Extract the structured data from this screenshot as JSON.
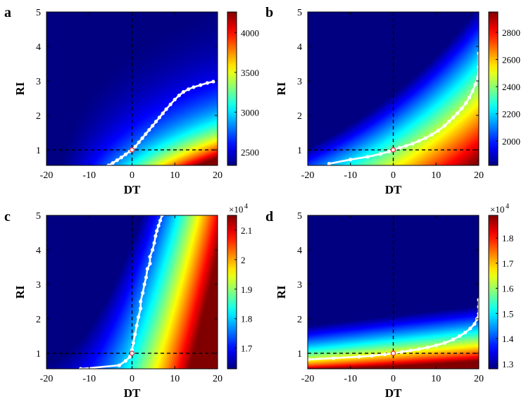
{
  "figure": {
    "colormap": "jet",
    "background": "#ffffff",
    "path_color": "#ffffff",
    "marker_color": "#ff2a2a",
    "dash_color": "#000000"
  },
  "chart_data": [
    {
      "panel_label": "a",
      "type": "heatmap",
      "xlabel": "DT",
      "ylabel": "RI",
      "xlim": [
        -20,
        20
      ],
      "ylim": [
        0.55,
        5
      ],
      "xticks": [
        "-20",
        "-10",
        "0",
        "10",
        "20"
      ],
      "yticks": [
        "1",
        "2",
        "3",
        "4",
        "5"
      ],
      "colorbar": {
        "range": [
          2330,
          4260
        ],
        "ticks": [
          "2500",
          "3000",
          "3500",
          "4000"
        ],
        "tick_values": [
          2500,
          3000,
          3500,
          4000
        ],
        "multiplier": ""
      },
      "reference_point": {
        "x": 0,
        "y": 1
      },
      "optimal_path": {
        "x": [
          -5.5,
          -4.5,
          -3.5,
          -2.5,
          -1.5,
          -0.5,
          0,
          0.8,
          1.6,
          2.4,
          3.2,
          4.0,
          4.8,
          5.6,
          6.4,
          7.2,
          8.0,
          9.0,
          10.0,
          11.0,
          12.0,
          13.2,
          14.4,
          16.0,
          17.6,
          19.0
        ],
        "y": [
          0.55,
          0.62,
          0.7,
          0.78,
          0.87,
          0.96,
          1.0,
          1.1,
          1.22,
          1.34,
          1.46,
          1.58,
          1.7,
          1.82,
          1.94,
          2.06,
          2.18,
          2.32,
          2.46,
          2.58,
          2.68,
          2.76,
          2.82,
          2.88,
          2.94,
          2.98
        ]
      }
    },
    {
      "panel_label": "b",
      "type": "heatmap",
      "xlabel": "DT",
      "ylabel": "RI",
      "xlim": [
        -20,
        20
      ],
      "ylim": [
        0.55,
        5
      ],
      "xticks": [
        "-20",
        "-10",
        "0",
        "10",
        "20"
      ],
      "yticks": [
        "1",
        "2",
        "3",
        "4",
        "5"
      ],
      "colorbar": {
        "range": [
          1820,
          2950
        ],
        "ticks": [
          "2000",
          "2200",
          "2400",
          "2600",
          "2800"
        ],
        "tick_values": [
          2000,
          2200,
          2400,
          2600,
          2800
        ],
        "multiplier": ""
      },
      "reference_point": {
        "x": 0,
        "y": 1
      },
      "optimal_path": {
        "x": [
          -15,
          -10,
          -6,
          -3,
          -1,
          0,
          1.5,
          3,
          4.5,
          6,
          7.5,
          9,
          10.5,
          12,
          13,
          14,
          15,
          16,
          17,
          17.8,
          18.5,
          19.2,
          19.8,
          20,
          20
        ],
        "y": [
          0.6,
          0.72,
          0.8,
          0.88,
          0.95,
          1.0,
          1.06,
          1.12,
          1.18,
          1.26,
          1.34,
          1.44,
          1.56,
          1.7,
          1.82,
          1.94,
          2.06,
          2.2,
          2.36,
          2.52,
          2.7,
          2.9,
          3.1,
          3.4,
          3.8
        ]
      }
    },
    {
      "panel_label": "c",
      "type": "heatmap",
      "xlabel": "DT",
      "ylabel": "RI",
      "xlim": [
        -20,
        20
      ],
      "ylim": [
        0.55,
        5
      ],
      "xticks": [
        "-20",
        "-10",
        "0",
        "10",
        "20"
      ],
      "yticks": [
        "1",
        "2",
        "3",
        "4",
        "5"
      ],
      "colorbar": {
        "range": [
          16300,
          21500
        ],
        "ticks": [
          "1.7",
          "1.8",
          "1.9",
          "2",
          "2.1"
        ],
        "tick_values": [
          17000,
          18000,
          19000,
          20000,
          21000
        ],
        "multiplier": "×10",
        "exponent": "4"
      },
      "reference_point": {
        "x": 0,
        "y": 1
      },
      "optimal_path": {
        "x": [
          -12,
          -3,
          -1.5,
          -0.5,
          0,
          0,
          0.3,
          0.7,
          1.1,
          1.5,
          2.0,
          2.0,
          2.5,
          2.9,
          3.3,
          3.6,
          4.2,
          4.2,
          4.8,
          5.2,
          5.5,
          5.8,
          6.2,
          6.6,
          7.0
        ],
        "y": [
          0.55,
          0.65,
          0.78,
          0.9,
          1.0,
          1.1,
          1.3,
          1.55,
          1.8,
          2.05,
          2.3,
          2.5,
          2.75,
          3.0,
          3.2,
          3.45,
          3.6,
          3.8,
          4.0,
          4.2,
          4.4,
          4.55,
          4.7,
          4.85,
          5.0
        ]
      }
    },
    {
      "panel_label": "d",
      "type": "heatmap",
      "xlabel": "DT",
      "ylabel": "RI",
      "xlim": [
        -20,
        20
      ],
      "ylim": [
        0.55,
        5
      ],
      "xticks": [
        "-20",
        "-10",
        "0",
        "10",
        "20"
      ],
      "yticks": [
        "1",
        "2",
        "3",
        "4",
        "5"
      ],
      "colorbar": {
        "range": [
          12800,
          18900
        ],
        "ticks": [
          "1.3",
          "1.4",
          "1.5",
          "1.6",
          "1.7",
          "1.8"
        ],
        "tick_values": [
          13000,
          14000,
          15000,
          16000,
          17000,
          18000
        ],
        "multiplier": "×10",
        "exponent": "4"
      },
      "reference_point": {
        "x": 0,
        "y": 1
      },
      "optimal_path": {
        "x": [
          -20,
          -14,
          -8,
          -5,
          -2,
          0,
          2,
          4,
          6,
          8,
          10,
          12,
          14,
          15.5,
          16.8,
          18,
          19,
          19.6,
          20,
          20,
          20
        ],
        "y": [
          0.82,
          0.86,
          0.9,
          0.93,
          0.97,
          1.0,
          1.04,
          1.08,
          1.12,
          1.17,
          1.23,
          1.3,
          1.4,
          1.5,
          1.6,
          1.72,
          1.85,
          2.0,
          2.15,
          2.35,
          2.55
        ]
      }
    }
  ]
}
